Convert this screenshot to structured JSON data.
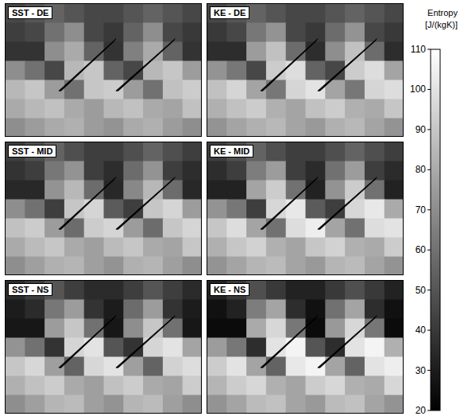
{
  "chart_data": [
    {
      "type": "heatmap",
      "title": "SST - DE",
      "tick_labels": false,
      "cells": [
        [
          45,
          50,
          55,
          50,
          45,
          45,
          50,
          55,
          50,
          45
        ],
        [
          42,
          45,
          60,
          70,
          45,
          40,
          55,
          70,
          45,
          40
        ],
        [
          38,
          38,
          70,
          80,
          55,
          38,
          65,
          80,
          55,
          38
        ],
        [
          70,
          60,
          45,
          85,
          90,
          55,
          45,
          85,
          90,
          75
        ],
        [
          85,
          90,
          75,
          60,
          90,
          92,
          75,
          60,
          88,
          92
        ],
        [
          80,
          85,
          88,
          80,
          75,
          85,
          88,
          80,
          78,
          88
        ],
        [
          70,
          75,
          80,
          82,
          75,
          72,
          80,
          82,
          75,
          70
        ]
      ]
    },
    {
      "type": "heatmap",
      "title": "KE - DE",
      "tick_labels": false,
      "cells": [
        [
          45,
          50,
          55,
          50,
          45,
          45,
          50,
          55,
          50,
          45
        ],
        [
          40,
          45,
          62,
          72,
          45,
          40,
          58,
          72,
          45,
          40
        ],
        [
          36,
          36,
          75,
          88,
          58,
          36,
          70,
          88,
          58,
          36
        ],
        [
          72,
          62,
          45,
          92,
          98,
          55,
          45,
          92,
          98,
          78
        ],
        [
          88,
          95,
          78,
          62,
          95,
          100,
          78,
          62,
          95,
          98
        ],
        [
          82,
          88,
          92,
          82,
          78,
          88,
          92,
          82,
          80,
          90
        ],
        [
          72,
          78,
          82,
          85,
          78,
          74,
          82,
          85,
          78,
          72
        ]
      ]
    },
    {
      "type": "heatmap",
      "title": "SST - MID",
      "tick_labels": false,
      "cells": [
        [
          42,
          48,
          55,
          48,
          42,
          42,
          48,
          55,
          48,
          42
        ],
        [
          38,
          42,
          62,
          72,
          42,
          36,
          58,
          72,
          42,
          36
        ],
        [
          34,
          34,
          72,
          85,
          58,
          34,
          68,
          85,
          58,
          34
        ],
        [
          70,
          60,
          42,
          90,
          95,
          52,
          42,
          90,
          95,
          75
        ],
        [
          88,
          92,
          75,
          58,
          92,
          95,
          75,
          58,
          90,
          95
        ],
        [
          80,
          86,
          90,
          80,
          76,
          86,
          90,
          80,
          78,
          90
        ],
        [
          70,
          76,
          82,
          84,
          76,
          72,
          82,
          84,
          76,
          70
        ]
      ]
    },
    {
      "type": "heatmap",
      "title": "KE - MID",
      "tick_labels": false,
      "cells": [
        [
          42,
          48,
          55,
          48,
          42,
          42,
          48,
          55,
          48,
          42
        ],
        [
          36,
          42,
          64,
          75,
          42,
          35,
          60,
          75,
          42,
          35
        ],
        [
          32,
          32,
          78,
          92,
          60,
          32,
          72,
          92,
          60,
          32
        ],
        [
          72,
          62,
          42,
          96,
          102,
          52,
          42,
          96,
          102,
          80
        ],
        [
          90,
          98,
          78,
          60,
          98,
          104,
          78,
          60,
          98,
          100
        ],
        [
          82,
          90,
          94,
          82,
          78,
          90,
          94,
          82,
          80,
          92
        ],
        [
          72,
          78,
          84,
          86,
          78,
          74,
          84,
          86,
          78,
          72
        ]
      ]
    },
    {
      "type": "heatmap",
      "title": "SST - NS",
      "tick_labels": false,
      "cells": [
        [
          35,
          42,
          50,
          42,
          35,
          35,
          42,
          50,
          42,
          35
        ],
        [
          30,
          35,
          62,
          75,
          38,
          30,
          58,
          75,
          38,
          30
        ],
        [
          28,
          28,
          75,
          90,
          60,
          28,
          70,
          90,
          60,
          28
        ],
        [
          72,
          60,
          38,
          95,
          100,
          50,
          38,
          95,
          100,
          78
        ],
        [
          90,
          96,
          76,
          55,
          96,
          100,
          76,
          55,
          94,
          98
        ],
        [
          82,
          88,
          92,
          80,
          76,
          88,
          92,
          80,
          78,
          92
        ],
        [
          70,
          76,
          84,
          86,
          76,
          72,
          84,
          86,
          76,
          70
        ]
      ]
    },
    {
      "type": "heatmap",
      "title": "KE - NS",
      "tick_labels": false,
      "cells": [
        [
          32,
          40,
          48,
          40,
          32,
          32,
          40,
          48,
          40,
          32
        ],
        [
          26,
          32,
          64,
          78,
          36,
          26,
          60,
          78,
          36,
          26
        ],
        [
          24,
          24,
          80,
          96,
          62,
          24,
          74,
          96,
          62,
          24
        ],
        [
          75,
          62,
          36,
          100,
          106,
          50,
          36,
          100,
          106,
          82
        ],
        [
          92,
          100,
          78,
          55,
          102,
          106,
          78,
          55,
          100,
          104
        ],
        [
          84,
          92,
          96,
          82,
          78,
          92,
          96,
          82,
          80,
          96
        ],
        [
          72,
          78,
          86,
          88,
          78,
          74,
          86,
          88,
          78,
          72
        ]
      ]
    }
  ],
  "colorbar": {
    "label": "Entropy [J/(kgK)]",
    "range": [
      20,
      110
    ],
    "ticks": [
      20,
      30,
      40,
      50,
      60,
      70,
      80,
      90,
      100,
      110
    ],
    "colors": [
      "#000000",
      "#ffffff"
    ]
  }
}
